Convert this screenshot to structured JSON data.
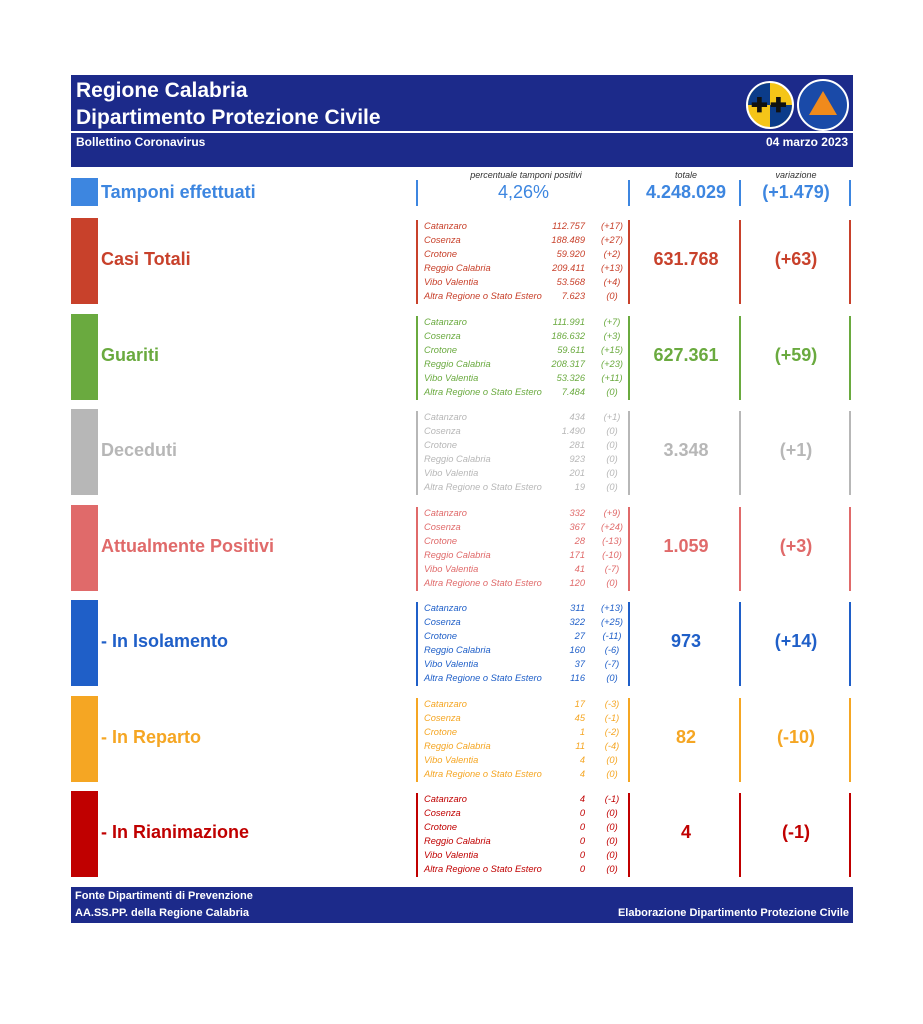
{
  "header": {
    "title_line1": "Regione Calabria",
    "title_line2": "Dipartimento Protezione Civile",
    "subtitle": "Bollettino Coronavirus",
    "date": "04 marzo 2023",
    "brand_color": "#1c2a8a"
  },
  "columns": {
    "pct": "percentuale tamponi positivi",
    "totale": "totale",
    "variazione": "variazione"
  },
  "tamponi": {
    "label": "Tamponi effettuati",
    "pct": "4,26%",
    "totale": "4.248.029",
    "variazione": "(+1.479)",
    "color": "#3d86e0"
  },
  "categories": [
    {
      "key": "casi_totali",
      "label": "Casi Totali",
      "color": "#c8412b",
      "totale": "631.768",
      "variazione": "(+63)",
      "provinces": [
        {
          "name": "Catanzaro",
          "value": "112.757",
          "delta": "(+17)"
        },
        {
          "name": "Cosenza",
          "value": "188.489",
          "delta": "(+27)"
        },
        {
          "name": "Crotone",
          "value": "59.920",
          "delta": "(+2)"
        },
        {
          "name": "Reggio Calabria",
          "value": "209.411",
          "delta": "(+13)"
        },
        {
          "name": "Vibo Valentia",
          "value": "53.568",
          "delta": "(+4)"
        },
        {
          "name": "Altra Regione o Stato Estero",
          "value": "7.623",
          "delta": "(0)"
        }
      ]
    },
    {
      "key": "guariti",
      "label": "Guariti",
      "color": "#6aaa3f",
      "totale": "627.361",
      "variazione": "(+59)",
      "provinces": [
        {
          "name": "Catanzaro",
          "value": "111.991",
          "delta": "(+7)"
        },
        {
          "name": "Cosenza",
          "value": "186.632",
          "delta": "(+3)"
        },
        {
          "name": "Crotone",
          "value": "59.611",
          "delta": "(+15)"
        },
        {
          "name": "Reggio Calabria",
          "value": "208.317",
          "delta": "(+23)"
        },
        {
          "name": "Vibo Valentia",
          "value": "53.326",
          "delta": "(+11)"
        },
        {
          "name": "Altra Regione o Stato Estero",
          "value": "7.484",
          "delta": "(0)"
        }
      ]
    },
    {
      "key": "deceduti",
      "label": "Deceduti",
      "color": "#b7b7b7",
      "totale": "3.348",
      "variazione": "(+1)",
      "provinces": [
        {
          "name": "Catanzaro",
          "value": "434",
          "delta": "(+1)"
        },
        {
          "name": "Cosenza",
          "value": "1.490",
          "delta": "(0)"
        },
        {
          "name": "Crotone",
          "value": "281",
          "delta": "(0)"
        },
        {
          "name": "Reggio Calabria",
          "value": "923",
          "delta": "(0)"
        },
        {
          "name": "Vibo Valentia",
          "value": "201",
          "delta": "(0)"
        },
        {
          "name": "Altra Regione o Stato Estero",
          "value": "19",
          "delta": "(0)"
        }
      ]
    },
    {
      "key": "attualmente_positivi",
      "label": "Attualmente Positivi",
      "color": "#e06a6a",
      "totale": "1.059",
      "variazione": "(+3)",
      "provinces": [
        {
          "name": "Catanzaro",
          "value": "332",
          "delta": "(+9)"
        },
        {
          "name": "Cosenza",
          "value": "367",
          "delta": "(+24)"
        },
        {
          "name": "Crotone",
          "value": "28",
          "delta": "(-13)"
        },
        {
          "name": "Reggio Calabria",
          "value": "171",
          "delta": "(-10)"
        },
        {
          "name": "Vibo Valentia",
          "value": "41",
          "delta": "(-7)"
        },
        {
          "name": "Altra Regione o Stato Estero",
          "value": "120",
          "delta": "(0)"
        }
      ]
    },
    {
      "key": "in_isolamento",
      "label": "- In Isolamento",
      "color": "#1f5fc8",
      "totale": "973",
      "variazione": "(+14)",
      "provinces": [
        {
          "name": "Catanzaro",
          "value": "311",
          "delta": "(+13)"
        },
        {
          "name": "Cosenza",
          "value": "322",
          "delta": "(+25)"
        },
        {
          "name": "Crotone",
          "value": "27",
          "delta": "(-11)"
        },
        {
          "name": "Reggio Calabria",
          "value": "160",
          "delta": "(-6)"
        },
        {
          "name": "Vibo Valentia",
          "value": "37",
          "delta": "(-7)"
        },
        {
          "name": "Altra Regione o Stato Estero",
          "value": "116",
          "delta": "(0)"
        }
      ]
    },
    {
      "key": "in_reparto",
      "label": "- In Reparto",
      "color": "#f5a623",
      "totale": "82",
      "variazione": "(-10)",
      "provinces": [
        {
          "name": "Catanzaro",
          "value": "17",
          "delta": "(-3)"
        },
        {
          "name": "Cosenza",
          "value": "45",
          "delta": "(-1)"
        },
        {
          "name": "Crotone",
          "value": "1",
          "delta": "(-2)"
        },
        {
          "name": "Reggio Calabria",
          "value": "11",
          "delta": "(-4)"
        },
        {
          "name": "Vibo Valentia",
          "value": "4",
          "delta": "(0)"
        },
        {
          "name": "Altra Regione o Stato Estero",
          "value": "4",
          "delta": "(0)"
        }
      ]
    },
    {
      "key": "in_rianimazione",
      "label": "- In Rianimazione",
      "color": "#c00000",
      "totale": "4",
      "variazione": "(-1)",
      "provinces": [
        {
          "name": "Catanzaro",
          "value": "4",
          "delta": "(-1)"
        },
        {
          "name": "Cosenza",
          "value": "0",
          "delta": "(0)"
        },
        {
          "name": "Crotone",
          "value": "0",
          "delta": "(0)"
        },
        {
          "name": "Reggio Calabria",
          "value": "0",
          "delta": "(0)"
        },
        {
          "name": "Vibo Valentia",
          "value": "0",
          "delta": "(0)"
        },
        {
          "name": "Altra Regione o Stato Estero",
          "value": "0",
          "delta": "(0)"
        }
      ]
    }
  ],
  "footer": {
    "line1": "Fonte Dipartimenti di Prevenzione",
    "line2": "AA.SS.PP.  della Regione Calabria",
    "credit": "Elaborazione Dipartimento Protezione Civile"
  },
  "logos": {
    "regione_logo": "regione-calabria-emblem",
    "pc_logo": "protezione-civile-emblem"
  }
}
